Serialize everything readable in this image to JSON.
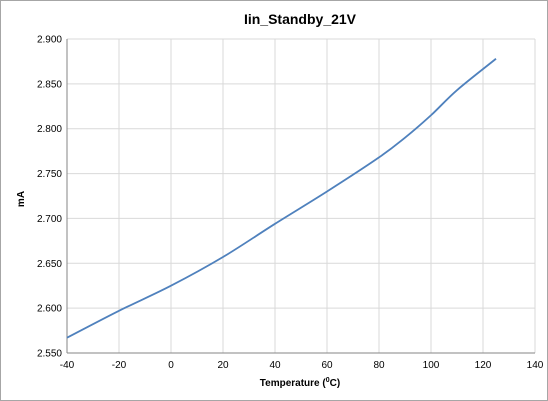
{
  "chart_data": {
    "type": "line",
    "title": "Iin_Standby_21V",
    "xlabel_prefix": "Temperature (",
    "xlabel_sup": "0",
    "xlabel_suffix": "C)",
    "ylabel": "mA",
    "xlim": [
      -40,
      140
    ],
    "ylim": [
      2.55,
      2.9
    ],
    "x_ticks": [
      "-40",
      "-20",
      "0",
      "20",
      "40",
      "60",
      "80",
      "100",
      "120",
      "140"
    ],
    "y_ticks": [
      "2.550",
      "2.600",
      "2.650",
      "2.700",
      "2.750",
      "2.800",
      "2.850",
      "2.900"
    ],
    "grid": true,
    "legend": "none",
    "series": [
      {
        "color": "#4f81bd",
        "x": [
          -40,
          -20,
          0,
          20,
          40,
          60,
          80,
          90,
          100,
          110,
          125
        ],
        "y": [
          2.567,
          2.597,
          2.625,
          2.657,
          2.694,
          2.73,
          2.768,
          2.79,
          2.815,
          2.843,
          2.878
        ]
      }
    ]
  }
}
